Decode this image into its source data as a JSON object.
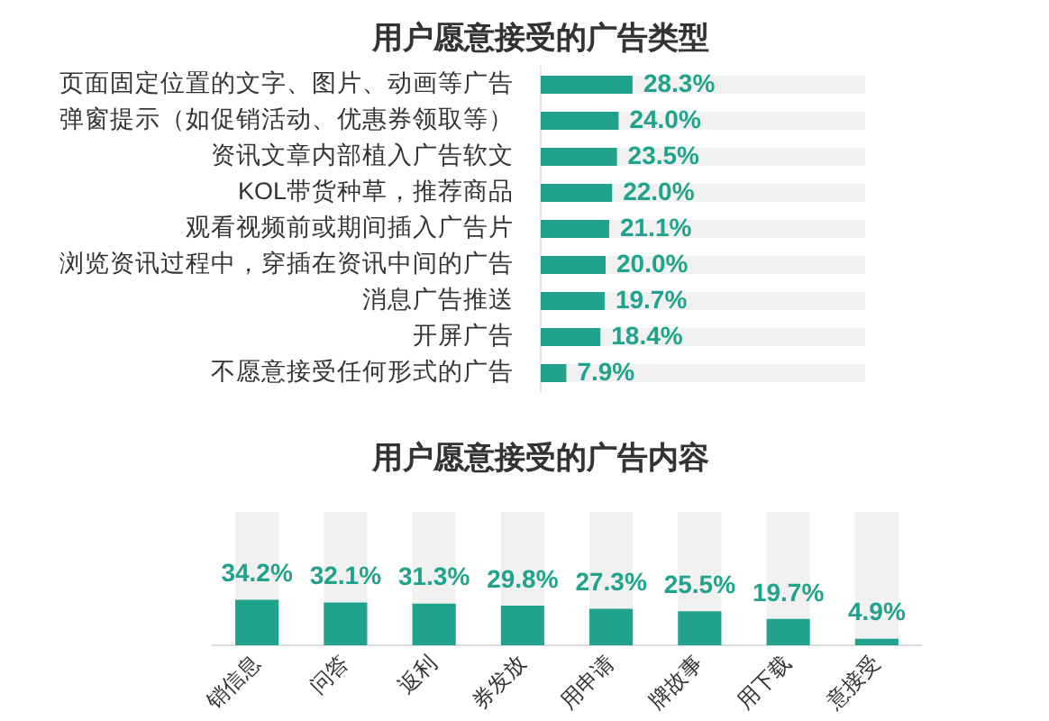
{
  "chart_data": [
    {
      "type": "bar",
      "title": "用户愿意接受的广告类型",
      "orientation": "horizontal",
      "categories": [
        "页面固定位置的文字、图片、动画等广告",
        "弹窗提示（如促销活动、优惠券领取等）",
        "资讯文章内部植入广告软文",
        "KOL带货种草，推荐商品",
        "观看视频前或期间插入广告片",
        "浏览资讯过程中，穿插在资讯中间的广告",
        "消息广告推送",
        "开屏广告",
        "不愿意接受任何形式的广告"
      ],
      "values": [
        28.3,
        24.0,
        23.5,
        22.0,
        21.1,
        20.0,
        19.7,
        18.4,
        7.9
      ],
      "value_labels": [
        "28.3%",
        "24.0%",
        "23.5%",
        "22.0%",
        "21.1%",
        "20.0%",
        "19.7%",
        "18.4%",
        "7.9%"
      ],
      "color": "#20a28c",
      "xlim": [
        0,
        100
      ],
      "tick_labels": "y"
    },
    {
      "type": "bar",
      "title": "用户愿意接受的广告内容",
      "categories": [
        "销信息",
        "问答",
        "返利",
        "券发放",
        "用申请",
        "牌故事",
        "用下载",
        "意接受"
      ],
      "values": [
        34.2,
        32.1,
        31.3,
        29.8,
        27.3,
        25.5,
        19.7,
        4.9
      ],
      "value_labels": [
        "34.2%",
        "32.1%",
        "31.3%",
        "29.8%",
        "27.3%",
        "25.5%",
        "19.7%",
        "4.9%"
      ],
      "color": "#20a28c",
      "ylim": [
        0,
        100
      ],
      "tick_labels": "x"
    }
  ]
}
